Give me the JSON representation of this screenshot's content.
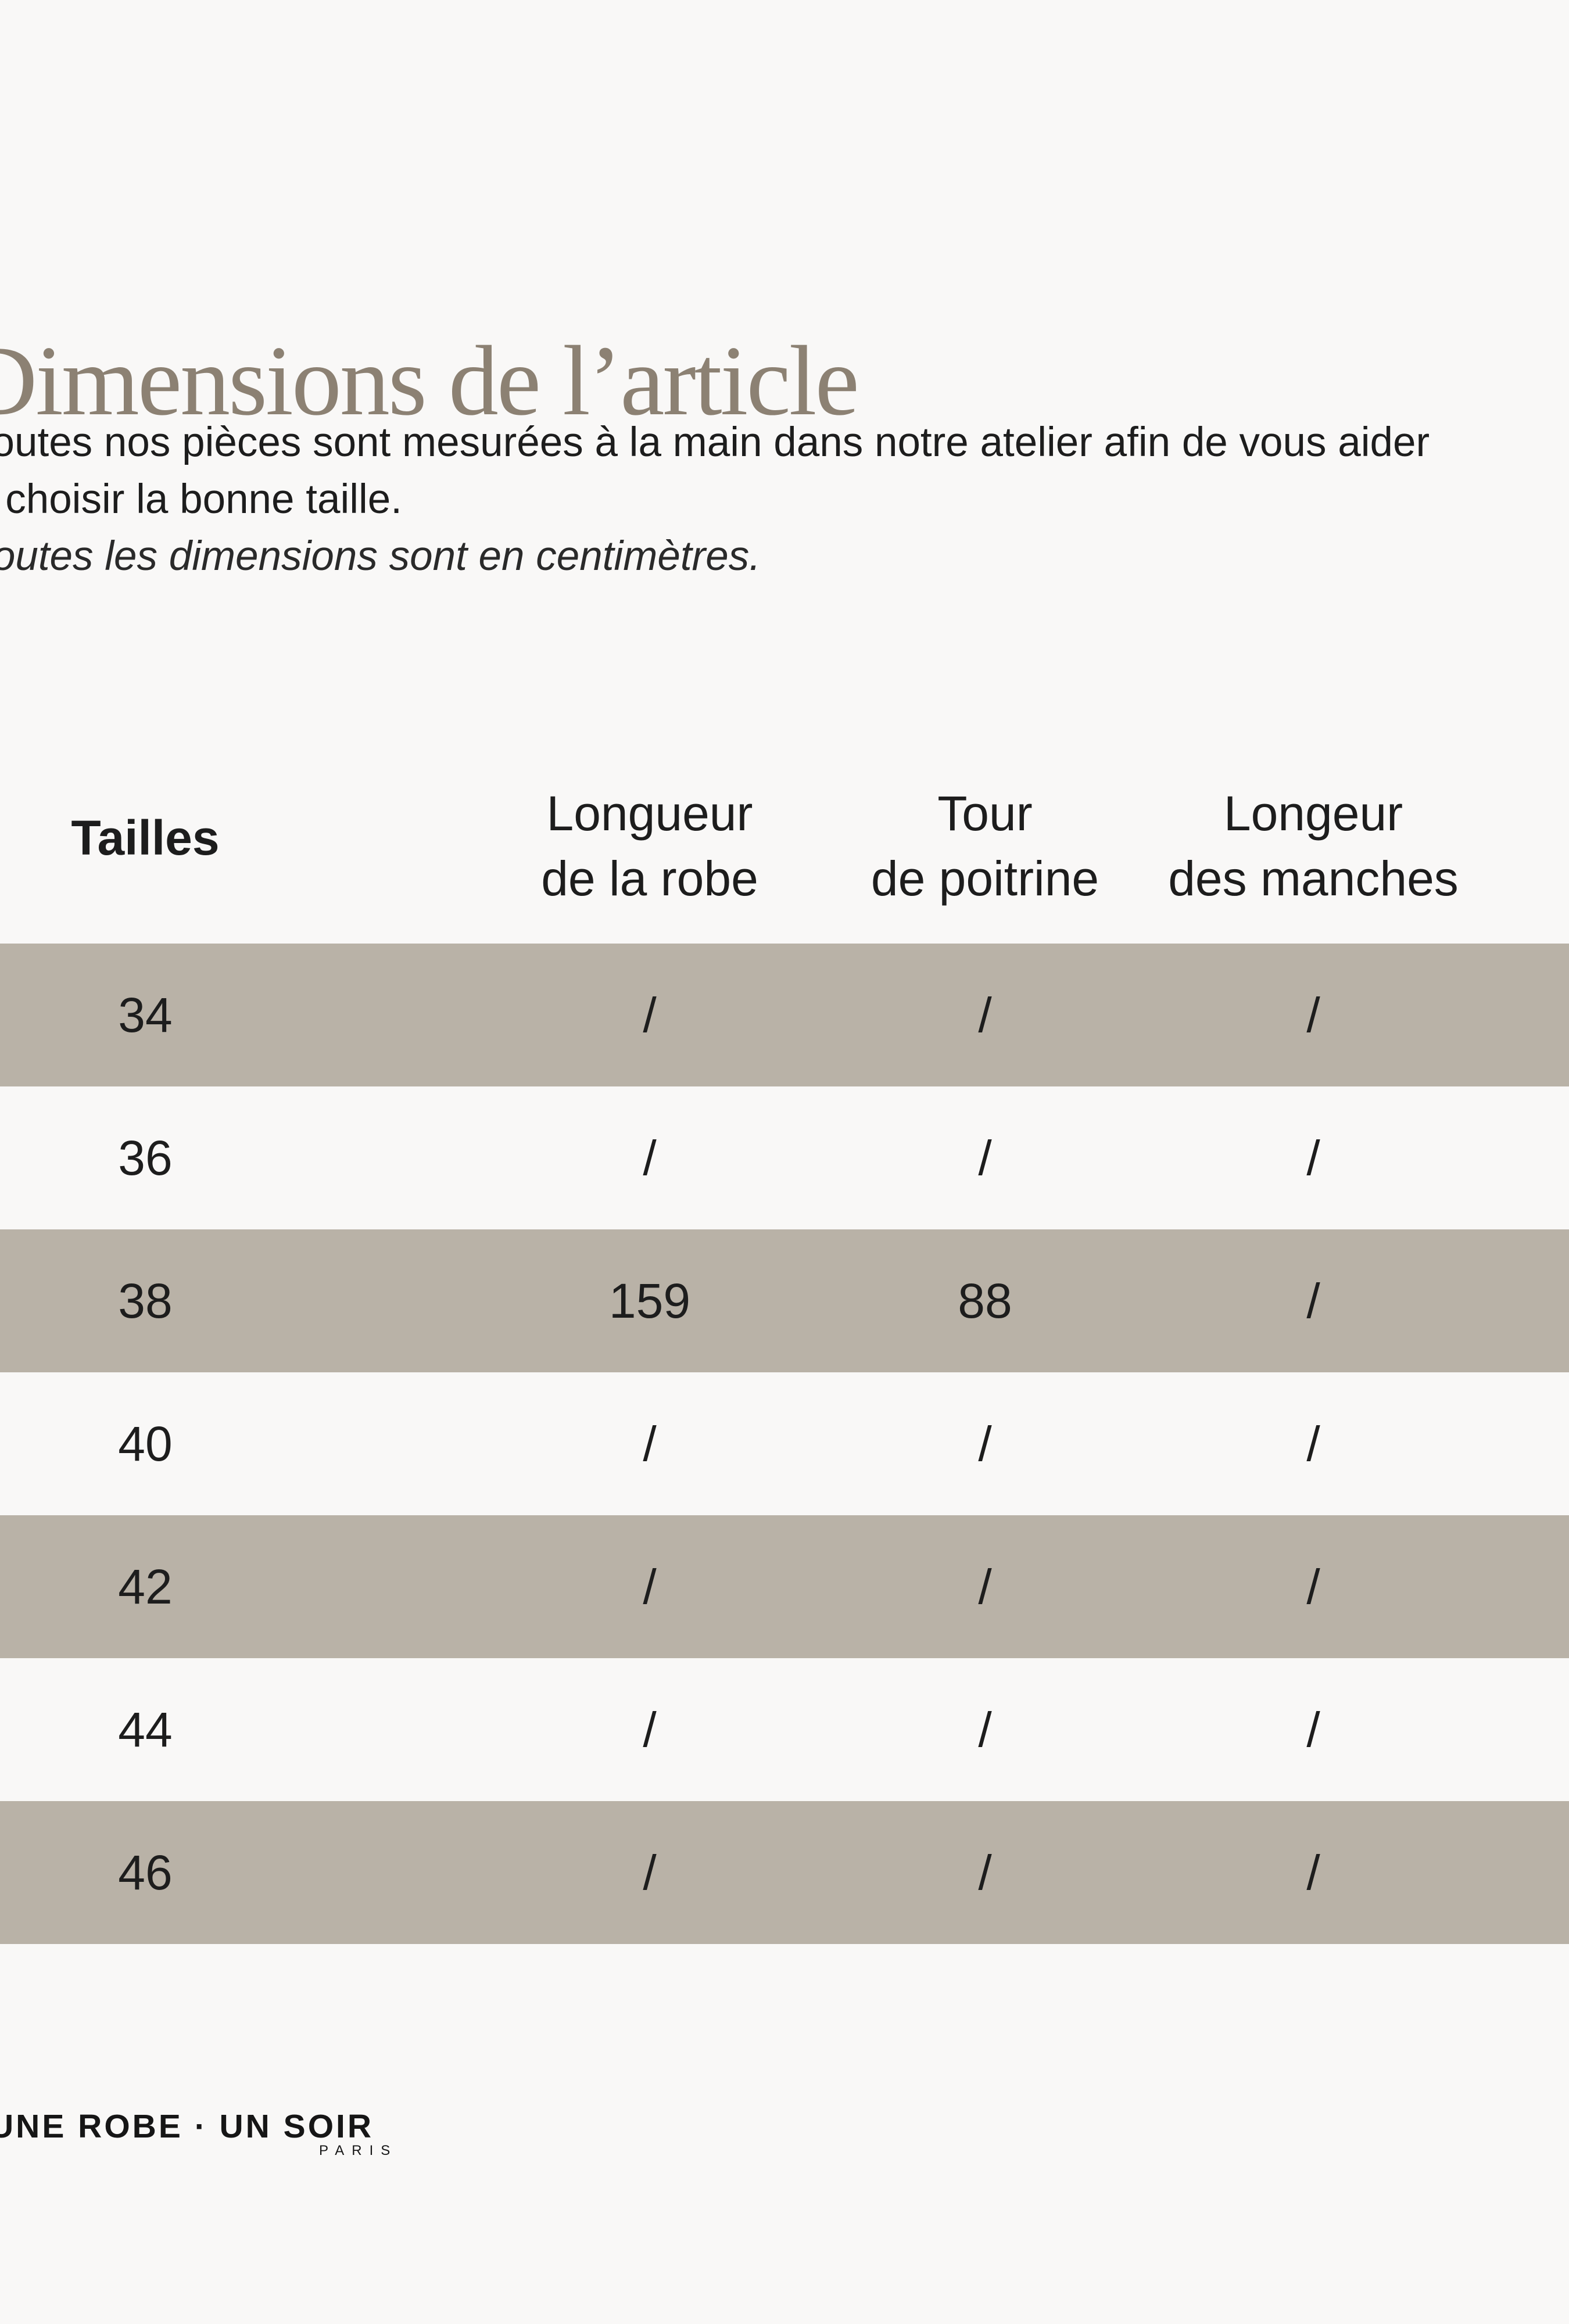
{
  "page": {
    "title": "Dimensions de l’article",
    "intro_line1": "Toutes nos pièces sont mesurées à la main dans notre atelier afin de vous aider",
    "intro_line2": "à choisir la bonne taille.",
    "note": "Toutes les dimensions sont en centimètres.",
    "colors": {
      "background": "#f9f8f7",
      "row_shaded": "#b9b2a7",
      "title": "#8c8173",
      "text": "#1d1d1d"
    }
  },
  "table": {
    "headers": {
      "sizes": "Tailles",
      "dress_length": "Longueur\nde la robe",
      "chest": "Tour\nde poitrine",
      "sleeves": "Longeur\ndes manches"
    },
    "rows": [
      {
        "size": "34",
        "dress_length": "/",
        "chest": "/",
        "sleeves": "/"
      },
      {
        "size": "36",
        "dress_length": "/",
        "chest": "/",
        "sleeves": "/"
      },
      {
        "size": "38",
        "dress_length": "159",
        "chest": "88",
        "sleeves": "/"
      },
      {
        "size": "40",
        "dress_length": "/",
        "chest": "/",
        "sleeves": "/"
      },
      {
        "size": "42",
        "dress_length": "/",
        "chest": "/",
        "sleeves": "/"
      },
      {
        "size": "44",
        "dress_length": "/",
        "chest": "/",
        "sleeves": "/"
      },
      {
        "size": "46",
        "dress_length": "/",
        "chest": "/",
        "sleeves": "/"
      }
    ]
  },
  "footer": {
    "brand": "UNE ROBE · UN SOIR",
    "brand_sub": "PARIS"
  }
}
